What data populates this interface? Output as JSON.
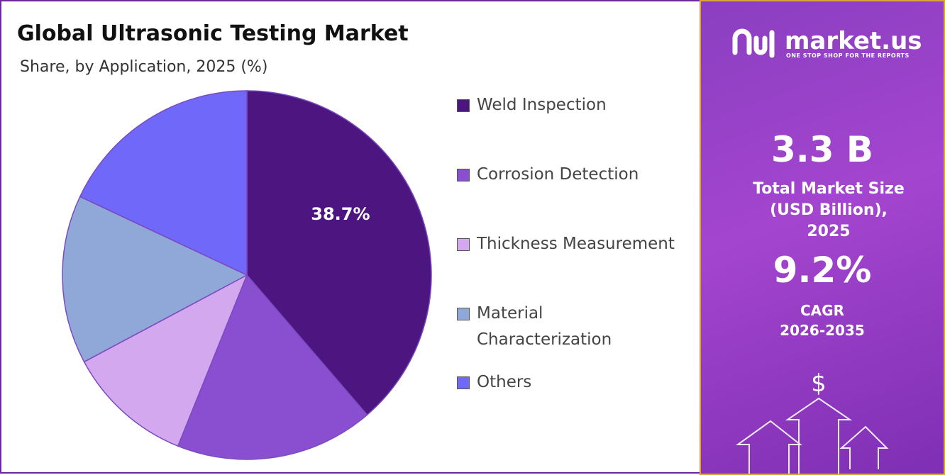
{
  "chart_data": {
    "type": "pie",
    "title": "Global Ultrasonic Testing Market",
    "subtitle": "Share, by Application, 2025 (%)",
    "categories": [
      "Weld Inspection",
      "Corrosion Detection",
      "Thickness Measurement",
      "Material Characterization",
      "Others"
    ],
    "values": [
      38.7,
      17.4,
      11.1,
      14.8,
      18.0
    ],
    "value_labels": [
      "38.7%",
      null,
      null,
      null,
      null
    ],
    "colors": [
      "#4c1580",
      "#8a4fd0",
      "#d4a8ef",
      "#8fa8d8",
      "#7068f8"
    ],
    "legend": "right"
  },
  "panel": {
    "brand": "market.us",
    "tagline": "ONE STOP SHOP FOR THE REPORTS",
    "market_size": "3.3 B",
    "market_size_label": "Total Market Size (USD Billion), 2025",
    "cagr": "9.2%",
    "cagr_label": "CAGR",
    "cagr_period": "2026-2035"
  }
}
